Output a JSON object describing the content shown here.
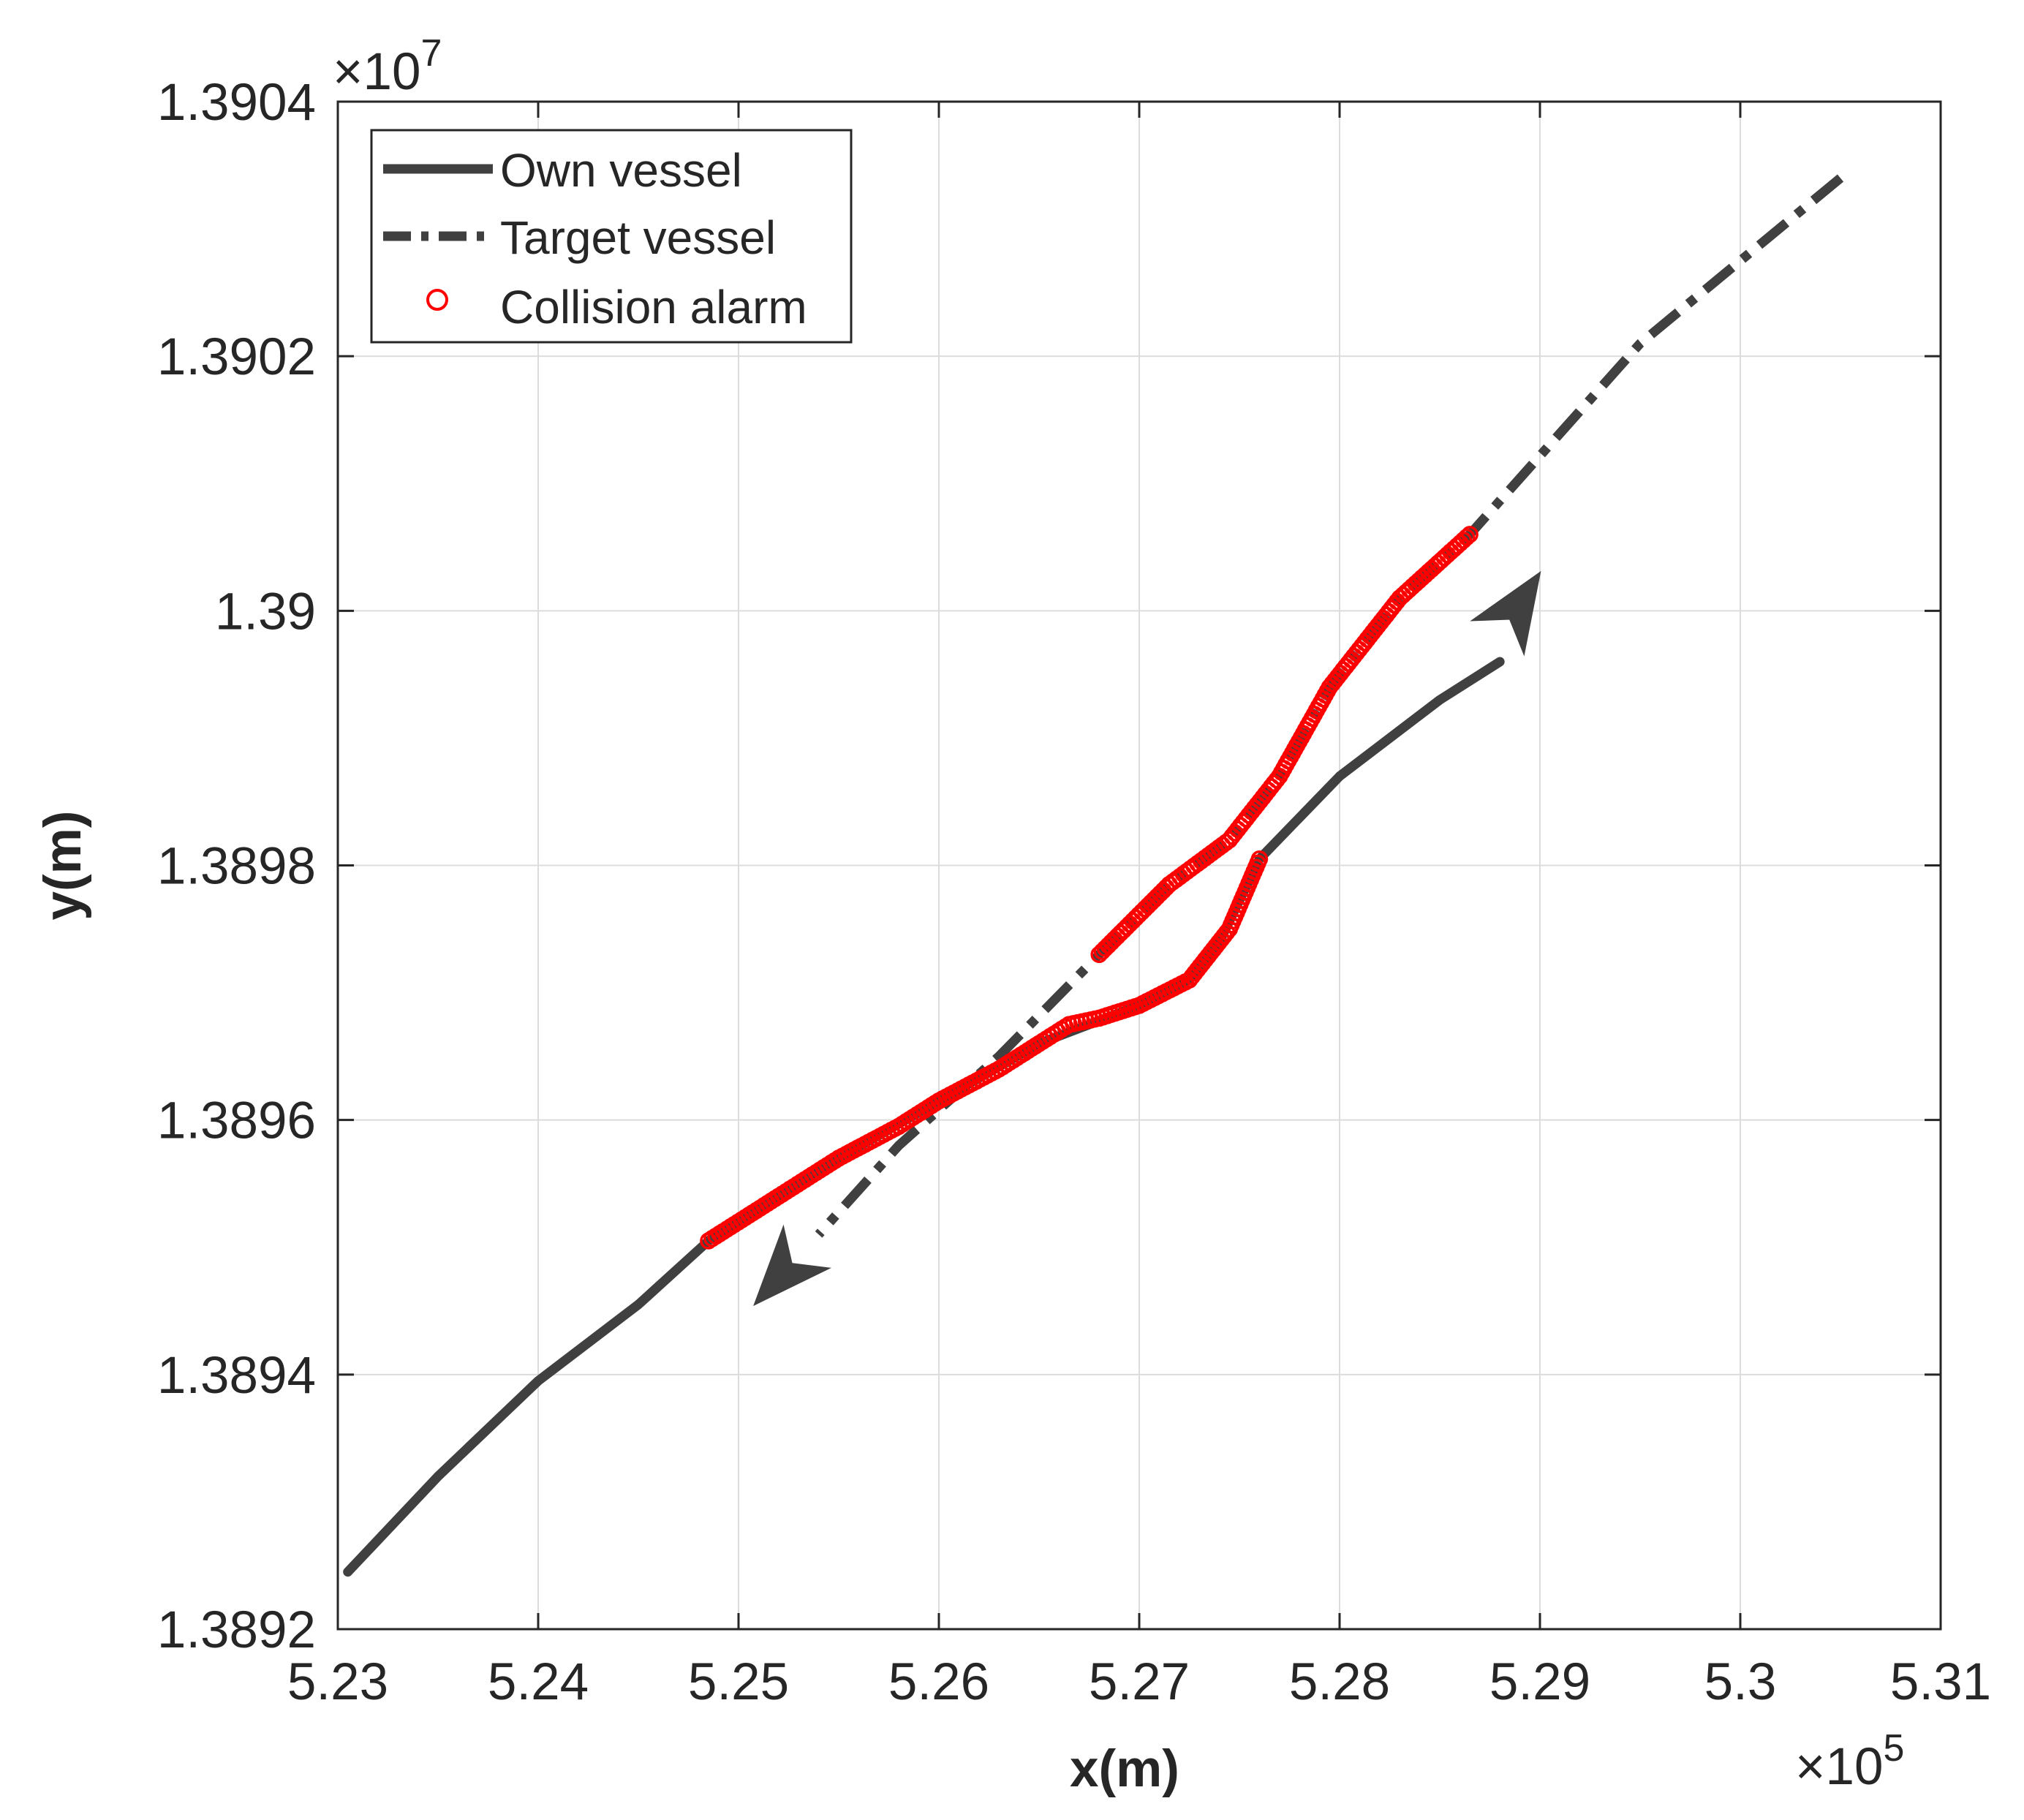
{
  "chart_data": {
    "type": "line",
    "title": "",
    "xlabel": "x(m)",
    "ylabel": "y(m)",
    "x_exponent_label": {
      "base": "×10",
      "power": "5"
    },
    "y_exponent_label": {
      "base": "×10",
      "power": "7"
    },
    "xlim": [
      523000,
      531000
    ],
    "ylim": [
      13892000,
      13904000
    ],
    "x_ticks": [
      523000,
      524000,
      525000,
      526000,
      527000,
      528000,
      529000,
      530000,
      531000
    ],
    "x_tick_labels": [
      "5.23",
      "5.24",
      "5.25",
      "5.26",
      "5.27",
      "5.28",
      "5.29",
      "5.3",
      "5.31"
    ],
    "y_ticks": [
      13892000,
      13894000,
      13896000,
      13898000,
      13900000,
      13902000,
      13904000
    ],
    "y_tick_labels": [
      "1.3892",
      "1.3894",
      "1.3896",
      "1.3898",
      "1.39",
      "1.3902",
      "1.3904"
    ],
    "grid": true,
    "legend_position": "top-left",
    "series": [
      {
        "name": "Own vessel",
        "style": "solid",
        "color": "#404040",
        "points": [
          [
            523050,
            13892450
          ],
          [
            523500,
            13893200
          ],
          [
            524000,
            13893950
          ],
          [
            524500,
            13894550
          ],
          [
            524850,
            13895050
          ],
          [
            525500,
            13895700
          ],
          [
            526000,
            13896150
          ],
          [
            526500,
            13896600
          ],
          [
            527000,
            13896900
          ],
          [
            527250,
            13897100
          ],
          [
            527400,
            13897400
          ],
          [
            527600,
            13898050
          ],
          [
            528000,
            13898700
          ],
          [
            528500,
            13899300
          ],
          [
            528800,
            13899600
          ]
        ]
      },
      {
        "name": "Target vessel",
        "style": "dash-dot",
        "color": "#404040",
        "points": [
          [
            530500,
            13903400
          ],
          [
            529500,
            13902100
          ],
          [
            528650,
            13900600
          ],
          [
            528300,
            13900100
          ],
          [
            527950,
            13899400
          ],
          [
            527700,
            13898700
          ],
          [
            527450,
            13898200
          ],
          [
            527150,
            13897850
          ],
          [
            526800,
            13897300
          ],
          [
            526300,
            13896500
          ],
          [
            525800,
            13895800
          ],
          [
            525400,
            13895100
          ]
        ]
      },
      {
        "name": "Collision alarm",
        "style": "markers",
        "color": "#ff0000",
        "points": [
          [
            524850,
            13895050
          ],
          [
            525200,
            13895400
          ],
          [
            525500,
            13895700
          ],
          [
            525800,
            13895950
          ],
          [
            526000,
            13896150
          ],
          [
            526300,
            13896400
          ],
          [
            526500,
            13896600
          ],
          [
            526650,
            13896750
          ],
          [
            526800,
            13896800
          ],
          [
            527000,
            13896900
          ],
          [
            527250,
            13897100
          ],
          [
            527450,
            13897500
          ],
          [
            527600,
            13898050
          ],
          [
            528650,
            13900600
          ],
          [
            528300,
            13900100
          ],
          [
            527950,
            13899400
          ],
          [
            527700,
            13898700
          ],
          [
            527450,
            13898200
          ],
          [
            527150,
            13897850
          ],
          [
            526800,
            13897300
          ]
        ]
      }
    ],
    "arrows": [
      {
        "series": "Own vessel",
        "from": [
          528650,
          13899450
        ],
        "to": [
          529000,
          13900300
        ]
      },
      {
        "series": "Target vessel",
        "from": [
          525800,
          13895800
        ],
        "to": [
          525080,
          13894550
        ]
      }
    ]
  }
}
